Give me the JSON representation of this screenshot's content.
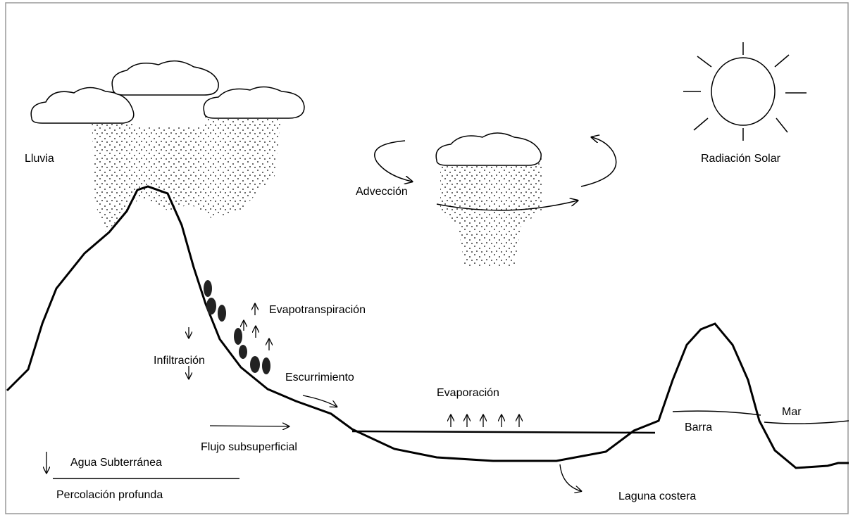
{
  "labels": {
    "rain": "Lluvia",
    "advection": "Advección",
    "solar_radiation": "Radiación Solar",
    "evapotranspiration": "Evapotranspiración",
    "infiltration": "Infiltración",
    "runoff": "Escurrimiento",
    "evaporation": "Evaporación",
    "sea": "Mar",
    "bar": "Barra",
    "subsurface_flow": "Flujo subsuperficial",
    "groundwater": "Agua Subterránea",
    "deep_percolation": "Percolación profunda",
    "coastal_lagoon": "Laguna costera"
  }
}
